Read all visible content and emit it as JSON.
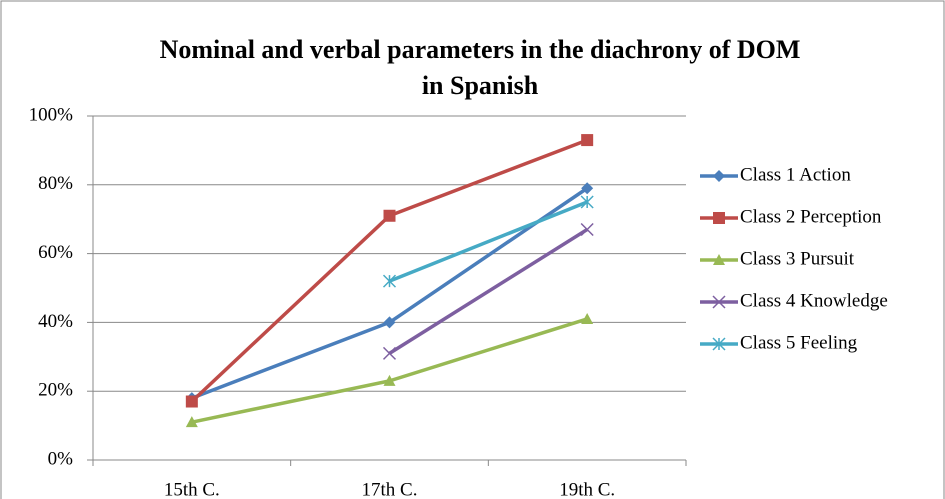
{
  "chart_data": {
    "type": "line",
    "title": "Nominal and verbal parameters in the diachrony of DOM in Spanish",
    "categories": [
      "15th C.",
      "17th C.",
      "19th C."
    ],
    "series": [
      {
        "name": "Class 1 Action",
        "color": "#4a7ebb",
        "marker": "diamond",
        "values": [
          18,
          40,
          79
        ]
      },
      {
        "name": "Class 2 Perception",
        "color": "#be4b48",
        "marker": "square",
        "values": [
          17,
          71,
          93
        ]
      },
      {
        "name": "Class 3 Pursuit",
        "color": "#98b954",
        "marker": "triangle",
        "values": [
          11,
          23,
          41
        ]
      },
      {
        "name": "Class 4 Knowledge",
        "color": "#7d5fa0",
        "marker": "x",
        "values": [
          null,
          31,
          67
        ]
      },
      {
        "name": "Class 5 Feeling",
        "color": "#46aac5",
        "marker": "star",
        "values": [
          null,
          52,
          75
        ]
      }
    ],
    "ylim": [
      0,
      100
    ],
    "yticks": [
      {
        "value": 0,
        "label": "0%"
      },
      {
        "value": 20,
        "label": "20%"
      },
      {
        "value": 40,
        "label": "40%"
      },
      {
        "value": 60,
        "label": "60%"
      },
      {
        "value": 80,
        "label": "80%"
      },
      {
        "value": 100,
        "label": "100%"
      }
    ],
    "grid": true,
    "legend": "right"
  }
}
